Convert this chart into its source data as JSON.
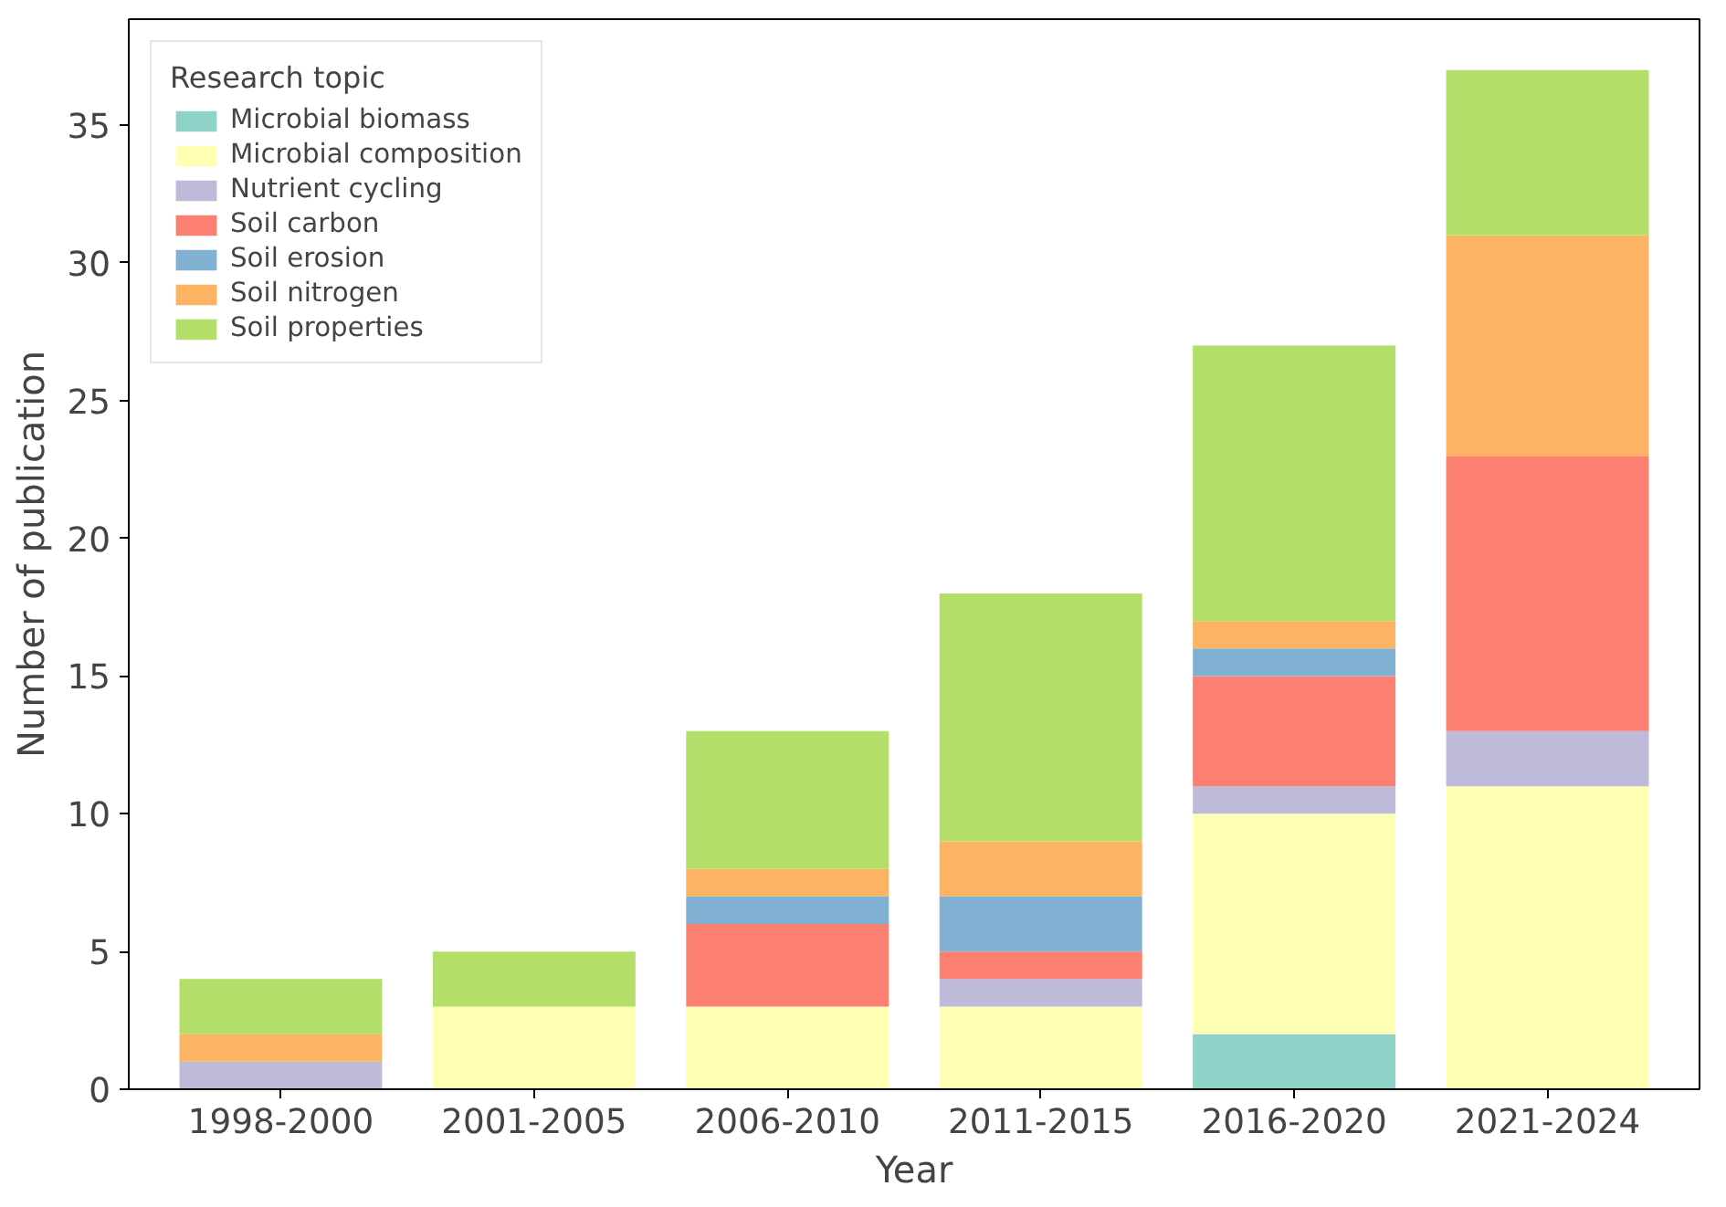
{
  "chart_data": {
    "type": "bar",
    "stacked": true,
    "xlabel": "Year",
    "ylabel": "Number of publication",
    "legend_title": "Research topic",
    "legend": "top left",
    "grid": false,
    "categories": [
      "1998-2000",
      "2001-2005",
      "2006-2010",
      "2011-2015",
      "2016-2020",
      "2021-2024"
    ],
    "ylim": [
      0,
      38.85
    ],
    "yticks": [
      0,
      5,
      10,
      15,
      20,
      25,
      30,
      35
    ],
    "series": [
      {
        "name": "Microbial biomass",
        "color": "#8dd3c7",
        "values": [
          0,
          0,
          0,
          0,
          2,
          0
        ]
      },
      {
        "name": "Microbial composition",
        "color": "#ffffb3",
        "values": [
          0,
          3,
          3,
          3,
          8,
          11
        ]
      },
      {
        "name": "Nutrient cycling",
        "color": "#bebada",
        "values": [
          1,
          0,
          0,
          1,
          1,
          2
        ]
      },
      {
        "name": "Soil carbon",
        "color": "#fb8072",
        "values": [
          0,
          0,
          3,
          1,
          4,
          10
        ]
      },
      {
        "name": "Soil erosion",
        "color": "#80b1d3",
        "values": [
          0,
          0,
          1,
          2,
          1,
          0
        ]
      },
      {
        "name": "Soil nitrogen",
        "color": "#fdb462",
        "values": [
          1,
          0,
          1,
          2,
          1,
          8
        ]
      },
      {
        "name": "Soil properties",
        "color": "#b3de69",
        "values": [
          2,
          2,
          5,
          9,
          10,
          6
        ]
      }
    ]
  }
}
